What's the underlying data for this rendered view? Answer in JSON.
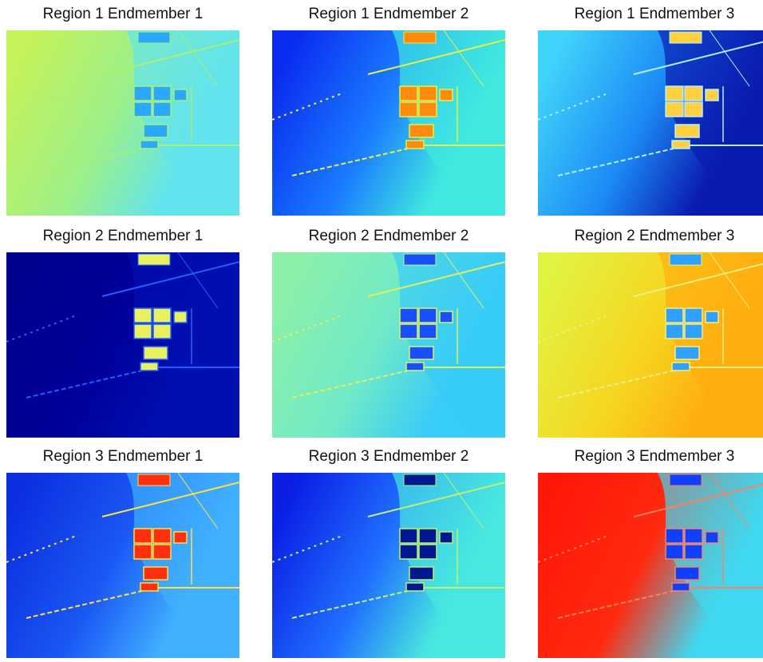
{
  "panels": [
    {
      "title": "Region 1 Endmember 1"
    },
    {
      "title": "Region 1 Endmember 2"
    },
    {
      "title": "Region 1 Endmember 3"
    },
    {
      "title": "Region 2 Endmember 1"
    },
    {
      "title": "Region 2 Endmember 2"
    },
    {
      "title": "Region 2 Endmember 3"
    },
    {
      "title": "Region 3 Endmember 1"
    },
    {
      "title": "Region 3 Endmember 2"
    },
    {
      "title": "Region 3 Endmember 3"
    }
  ]
}
